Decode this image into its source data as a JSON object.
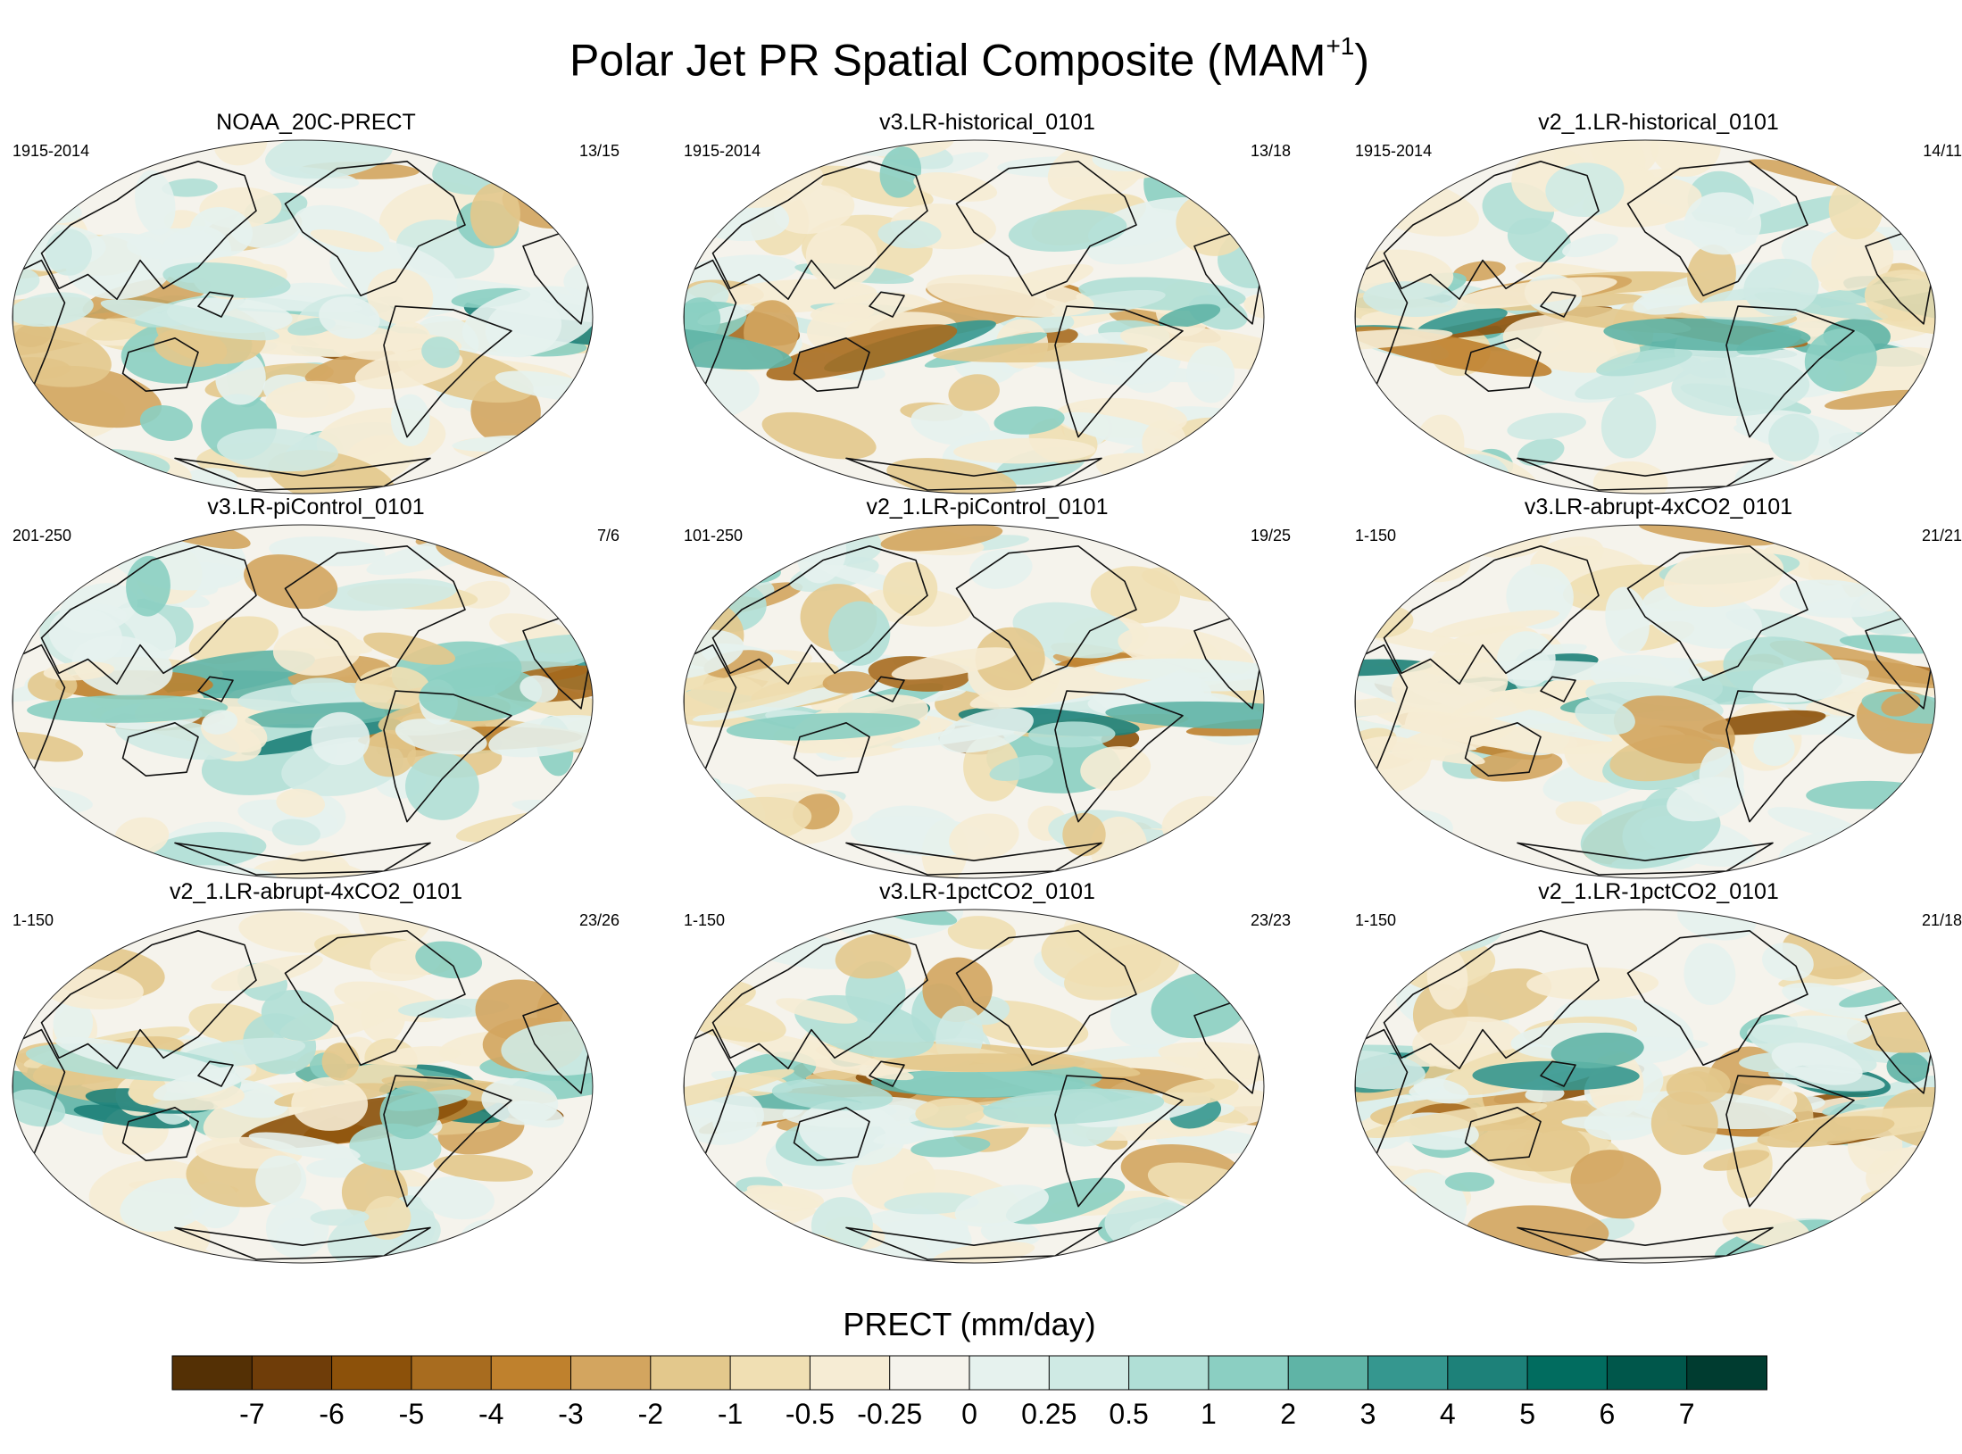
{
  "chart_data": {
    "type": "heatmap",
    "title": "Polar Jet PR Spatial Composite (MAM",
    "title_superscript": "+1",
    "title_close": ")",
    "panels": [
      {
        "name": "NOAA_20C-PRECT",
        "period": "1915-2014",
        "count": "13/15",
        "seed": 11
      },
      {
        "name": "v3.LR-historical_0101",
        "period": "1915-2014",
        "count": "13/18",
        "seed": 23
      },
      {
        "name": "v2_1.LR-historical_0101",
        "period": "1915-2014",
        "count": "14/11",
        "seed": 37
      },
      {
        "name": "v3.LR-piControl_0101",
        "period": "201-250",
        "count": "7/6",
        "seed": 41
      },
      {
        "name": "v2_1.LR-piControl_0101",
        "period": "101-250",
        "count": "19/25",
        "seed": 53
      },
      {
        "name": "v3.LR-abrupt-4xCO2_0101",
        "period": "1-150",
        "count": "21/21",
        "seed": 67
      },
      {
        "name": "v2_1.LR-abrupt-4xCO2_0101",
        "period": "1-150",
        "count": "23/26",
        "seed": 71
      },
      {
        "name": "v3.LR-1pctCO2_0101",
        "period": "1-150",
        "count": "23/23",
        "seed": 89
      },
      {
        "name": "v2_1.LR-1pctCO2_0101",
        "period": "1-150",
        "count": "21/18",
        "seed": 97
      }
    ],
    "colorbar": {
      "label": "PRECT (mm/day)",
      "levels": [
        "-7",
        "-6",
        "-5",
        "-4",
        "-3",
        "-2",
        "-1",
        "-0.5",
        "-0.25",
        "0",
        "0.25",
        "0.5",
        "1",
        "2",
        "3",
        "4",
        "5",
        "6",
        "7"
      ],
      "colors": [
        "#543005",
        "#6f3d09",
        "#8c510a",
        "#a86c1f",
        "#bf812d",
        "#d3a55f",
        "#e3c88c",
        "#f0dfb3",
        "#f6ecd4",
        "#f5f3ec",
        "#e6f2ee",
        "#cfeae4",
        "#b0dfd6",
        "#8bcfc2",
        "#5fb4a6",
        "#35978f",
        "#1d8179",
        "#016c5f",
        "#00574b",
        "#003c30"
      ]
    },
    "xlabel": "",
    "ylabel": ""
  }
}
